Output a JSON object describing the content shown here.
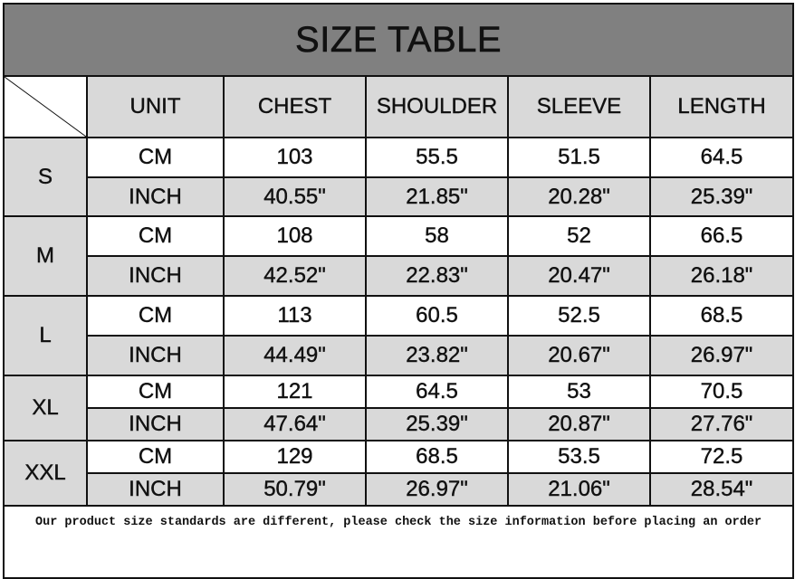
{
  "title": "SIZE TABLE",
  "headers": [
    "UNIT",
    "CHEST",
    "SHOULDER",
    "SLEEVE",
    "LENGTH"
  ],
  "sizes": [
    {
      "size": "S",
      "rows": [
        {
          "unit": "CM",
          "values": [
            "103",
            "55.5",
            "51.5",
            "64.5"
          ]
        },
        {
          "unit": "INCH",
          "values": [
            "40.55\"",
            "21.85\"",
            "20.28\"",
            "25.39\""
          ]
        }
      ]
    },
    {
      "size": "M",
      "rows": [
        {
          "unit": "CM",
          "values": [
            "108",
            "58",
            "52",
            "66.5"
          ]
        },
        {
          "unit": "INCH",
          "values": [
            "42.52\"",
            "22.83\"",
            "20.47\"",
            "26.18\""
          ]
        }
      ]
    },
    {
      "size": "L",
      "rows": [
        {
          "unit": "CM",
          "values": [
            "113",
            "60.5",
            "52.5",
            "68.5"
          ]
        },
        {
          "unit": "INCH",
          "values": [
            "44.49\"",
            "23.82\"",
            "20.67\"",
            "26.97\""
          ]
        }
      ]
    },
    {
      "size": "XL",
      "rows": [
        {
          "unit": "CM",
          "values": [
            "121",
            "64.5",
            "53",
            "70.5"
          ]
        },
        {
          "unit": "INCH",
          "values": [
            "47.64\"",
            "25.39\"",
            "20.87\"",
            "27.76\""
          ]
        }
      ]
    },
    {
      "size": "XXL",
      "rows": [
        {
          "unit": "CM",
          "values": [
            "129",
            "68.5",
            "53.5",
            "72.5"
          ]
        },
        {
          "unit": "INCH",
          "values": [
            "50.79\"",
            "26.97\"",
            "21.06\"",
            "28.54\""
          ]
        }
      ]
    }
  ],
  "footer": "Our product size standards are different, please check the size information before placing an order",
  "colors": {
    "title_bg": "#808080",
    "cell_gray": "#d9d9d9",
    "border": "#111111"
  }
}
